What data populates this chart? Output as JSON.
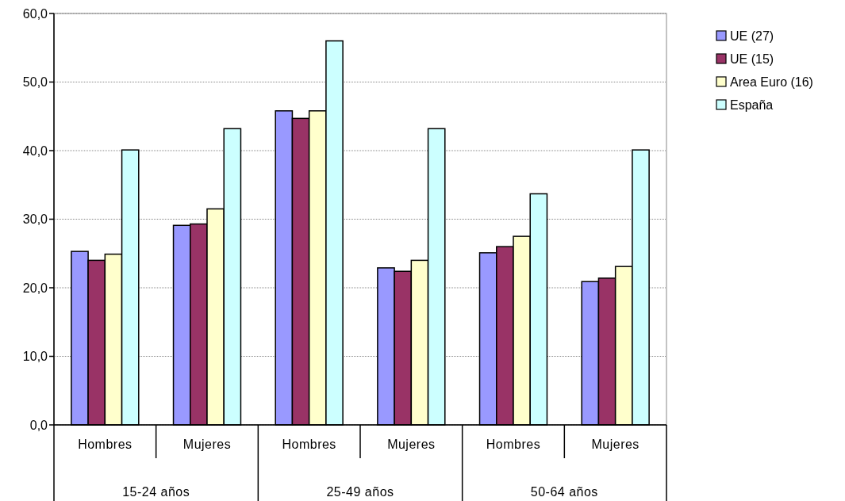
{
  "chart_data": {
    "type": "bar",
    "categories": [
      "Hombres",
      "Mujeres",
      "Hombres",
      "Mujeres",
      "Hombres",
      "Mujeres"
    ],
    "annotations": [
      "15-24 años",
      "25-49 años",
      "50-64 años"
    ],
    "series": [
      {
        "name": "UE (27)",
        "color": "#9999ff",
        "values": [
          25.3,
          29.1,
          45.8,
          22.9,
          25.1,
          20.9
        ]
      },
      {
        "name": "UE (15)",
        "color": "#993366",
        "values": [
          24.0,
          29.3,
          44.7,
          22.4,
          26.0,
          21.4
        ]
      },
      {
        "name": "Area Euro (16)",
        "color": "#ffffcc",
        "values": [
          24.9,
          31.5,
          45.8,
          24.0,
          27.5,
          23.1
        ]
      },
      {
        "name": "España",
        "color": "#ccffff",
        "values": [
          40.1,
          43.2,
          56.0,
          43.2,
          33.7,
          40.1
        ]
      }
    ],
    "ylim": [
      0,
      60
    ],
    "yticks": [
      {
        "value": 0,
        "label": "0,0"
      },
      {
        "value": 10,
        "label": "10,0"
      },
      {
        "value": 20,
        "label": "20,0"
      },
      {
        "value": 30,
        "label": "30,0"
      },
      {
        "value": 40,
        "label": "40,0"
      },
      {
        "value": 50,
        "label": "50,0"
      },
      {
        "value": 60,
        "label": "60,0"
      }
    ],
    "grid": "y",
    "legend": "top right"
  }
}
